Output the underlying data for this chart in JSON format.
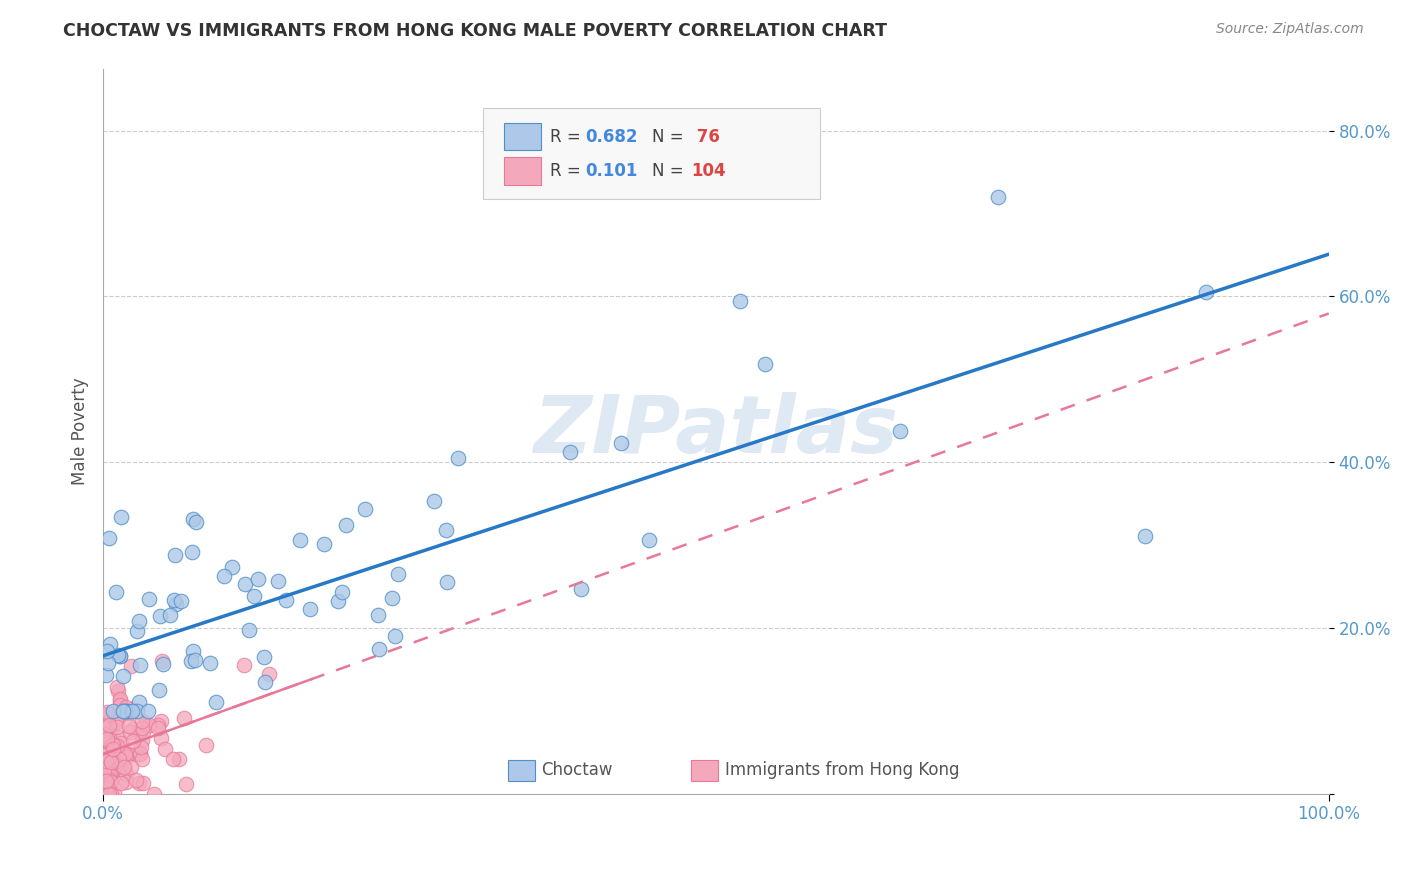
{
  "title": "CHOCTAW VS IMMIGRANTS FROM HONG KONG MALE POVERTY CORRELATION CHART",
  "source": "Source: ZipAtlas.com",
  "ylabel": "Male Poverty",
  "xlim": [
    0,
    1.0
  ],
  "ylim": [
    0,
    0.875
  ],
  "ytick_positions": [
    0.0,
    0.2,
    0.4,
    0.6,
    0.8
  ],
  "yticklabels": [
    "",
    "20.0%",
    "40.0%",
    "60.0%",
    "80.0%"
  ],
  "watermark": "ZIPatlas",
  "choctaw_line_color": "#2878c8",
  "hk_line_color": "#e87898",
  "choctaw_marker_fill": "#adc8e8",
  "choctaw_marker_edge": "#5090c8",
  "hk_marker_fill": "#f4a8bc",
  "hk_marker_edge": "#e87898",
  "grid_color": "#cccccc",
  "background_color": "#ffffff",
  "choctaw_R": 0.682,
  "choctaw_N": 76,
  "hk_R": 0.101,
  "hk_N": 104,
  "legend_R_label_color": "#333333",
  "legend_val_color": "#4488dd",
  "legend_N_color": "#333333",
  "legend_N_val_color": "#dd4444"
}
